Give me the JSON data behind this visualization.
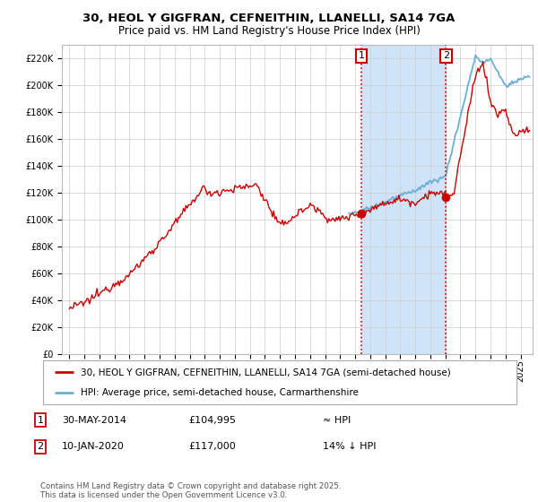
{
  "title1": "30, HEOL Y GIGFRAN, CEFNEITHIN, LLANELLI, SA14 7GA",
  "title2": "Price paid vs. HM Land Registry's House Price Index (HPI)",
  "legend_label1": "30, HEOL Y GIGFRAN, CEFNEITHIN, LLANELLI, SA14 7GA (semi-detached house)",
  "legend_label2": "HPI: Average price, semi-detached house, Carmarthenshire",
  "annotation_label": "Contains HM Land Registry data © Crown copyright and database right 2025.\nThis data is licensed under the Open Government Licence v3.0.",
  "table_rows": [
    {
      "num": "1",
      "date": "30-MAY-2014",
      "price": "£104,995",
      "note": "≈ HPI"
    },
    {
      "num": "2",
      "date": "10-JAN-2020",
      "price": "£117,000",
      "note": "14% ↓ HPI"
    }
  ],
  "vline1_x": 2014.41,
  "vline2_x": 2020.03,
  "point1_x": 2014.41,
  "point1_y": 104995,
  "point2_x": 2020.03,
  "point2_y": 117000,
  "ylim": [
    0,
    230000
  ],
  "xlim_left": 1994.5,
  "xlim_right": 2025.8,
  "hpi_color": "#6baed6",
  "price_color": "#cc0000",
  "vline_color": "#cc0000",
  "background_color": "#ffffff",
  "plot_bg_color": "#ffffff",
  "grid_color": "#cccccc",
  "vspan_color": "#d0e4f7"
}
